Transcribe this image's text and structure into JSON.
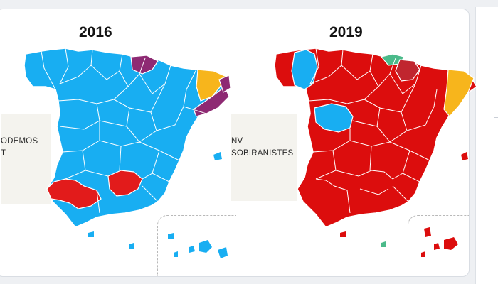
{
  "maps": [
    {
      "year": "2016",
      "legend_lines": [
        "ODEMOS",
        "T"
      ],
      "colors": {
        "mainland": "#18aef2",
        "south_a": "#e21b1b",
        "south_b": "#e21b1b",
        "north_patch": "#8e2a73",
        "catalonia": "#f7b51c",
        "east_strip": "#8e2a73",
        "islands": "#18aef2"
      }
    },
    {
      "year": "2019",
      "legend_lines": [
        "NV",
        "SOBIRANISTES"
      ],
      "colors": {
        "mainland": "#dc0d0d",
        "galicia_west": "#18aef2",
        "center_blue": "#18aef2",
        "basque": "#4bba8a",
        "navarra": "#c0262f",
        "catalonia": "#f7b51c",
        "islands": "#dc0d0d",
        "ceuta": "#4bba8a"
      }
    }
  ]
}
